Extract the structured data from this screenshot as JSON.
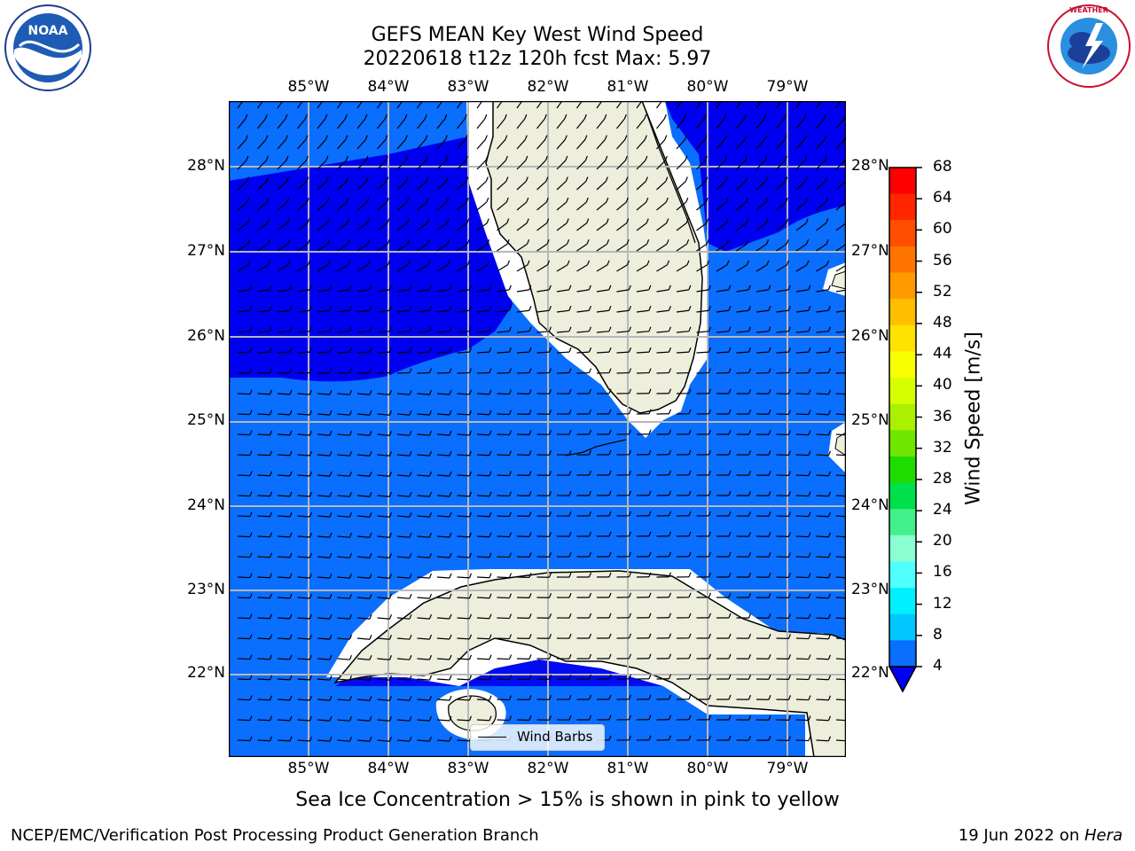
{
  "title": {
    "line1": "GEFS MEAN Key West Wind Speed",
    "line2": "20220618 t12z 120h fcst   Max: 5.97"
  },
  "caption": "Sea Ice Concentration > 15% is shown in pink to yellow",
  "footer": {
    "left": "NCEP/EMC/Verification Post Processing Product Generation Branch",
    "right_prefix": "19 Jun 2022 on ",
    "right_machine": "Hera"
  },
  "logos": {
    "noaa": {
      "text": "NOAA",
      "ring_text": "NATIONAL OCEANIC AND ATMOSPHERIC ADMINISTRATION · U.S. DEPARTMENT OF COMMERCE"
    },
    "nws": {
      "ring_text": "NATIONAL WEATHER SERVICE"
    }
  },
  "map": {
    "lon_labels": [
      "85°W",
      "84°W",
      "83°W",
      "82°W",
      "81°W",
      "80°W",
      "79°W"
    ],
    "lat_labels": [
      "28°N",
      "27°N",
      "26°N",
      "25°N",
      "24°N",
      "23°N",
      "22°N"
    ],
    "legend_label": "Wind Barbs",
    "land_color": "#eeeedd",
    "ocean_colors": {
      "4-8": "#0a6eff",
      "below-4": "#0000f0"
    }
  },
  "colorbar": {
    "label": "Wind Speed [m/s]",
    "ticks": [
      "68",
      "64",
      "60",
      "56",
      "52",
      "48",
      "44",
      "40",
      "36",
      "32",
      "28",
      "24",
      "20",
      "16",
      "12",
      "8",
      "4"
    ],
    "colors": [
      "#ff0000",
      "#ff2600",
      "#ff4e00",
      "#ff7400",
      "#ff9a00",
      "#ffbe00",
      "#ffe200",
      "#f8ff00",
      "#d6ff00",
      "#aaf000",
      "#6ee600",
      "#1edc00",
      "#00e04a",
      "#44f08c",
      "#8affd2",
      "#50ffff",
      "#00f0ff",
      "#00c8ff",
      "#0a6eff"
    ],
    "under_color": "#0000f0"
  }
}
